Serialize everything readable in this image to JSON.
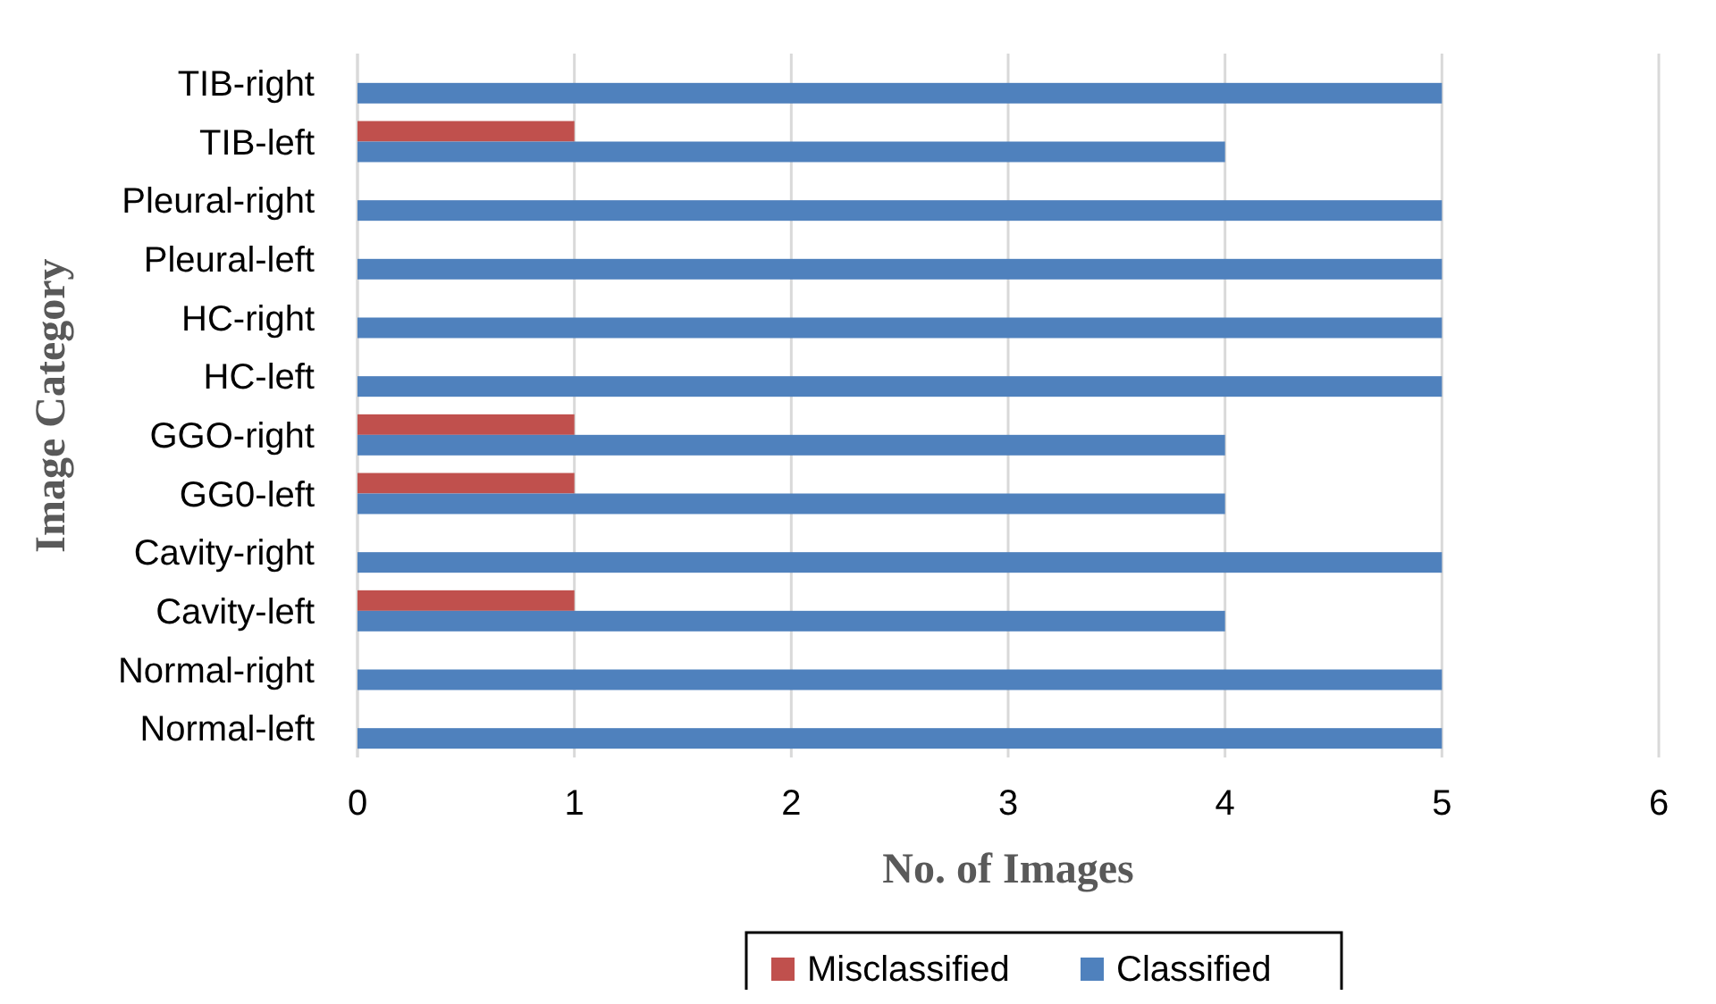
{
  "chart_data": {
    "type": "bar",
    "orientation": "horizontal",
    "xlabel": "No. of Images",
    "ylabel": "Image Category",
    "categories": [
      "TIB-right",
      "TIB-left",
      "Pleural-right",
      "Pleural-left",
      "HC-right",
      "HC-left",
      "GGO-right",
      "GG0-left",
      "Cavity-right",
      "Cavity-left",
      "Normal-right",
      "Normal-left"
    ],
    "series": [
      {
        "name": "Misclassified",
        "color": "#c0504d",
        "values": [
          0,
          1,
          0,
          0,
          0,
          0,
          1,
          1,
          0,
          1,
          0,
          0
        ]
      },
      {
        "name": "Classified",
        "color": "#4f81bd",
        "values": [
          5,
          4,
          5,
          5,
          5,
          5,
          4,
          4,
          5,
          4,
          5,
          5
        ]
      }
    ],
    "xlim": [
      0,
      6
    ],
    "xticks": [
      0,
      1,
      2,
      3,
      4,
      5,
      6
    ],
    "grid": "x",
    "legend": "bottom"
  }
}
